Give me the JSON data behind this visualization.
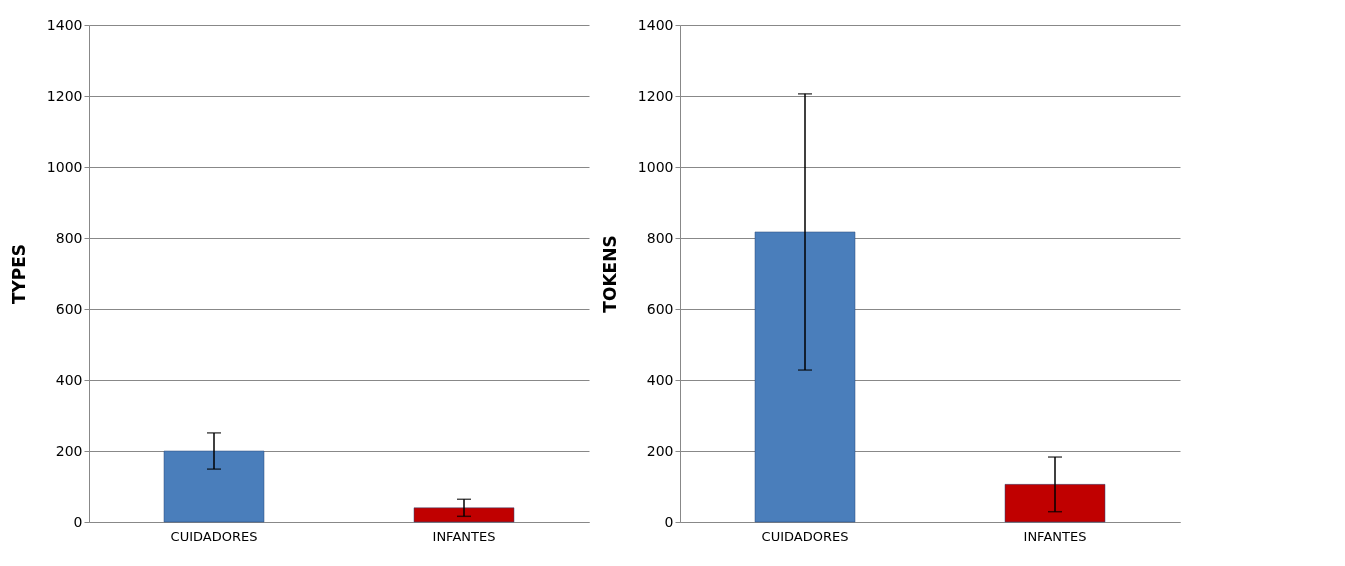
{
  "chart_data": [
    {
      "type": "bar",
      "ylabel": "TYPES",
      "categories": [
        "CUIDADORES",
        "INFANTES"
      ],
      "values": [
        200,
        40
      ],
      "colors": [
        "#4a7ebb",
        "#c00000"
      ],
      "errors": [
        51,
        24
      ],
      "ylim": [
        0,
        1400
      ],
      "yticks": [
        0,
        200,
        400,
        600,
        800,
        1000,
        1200,
        1400
      ],
      "grid": "y"
    },
    {
      "type": "bar",
      "ylabel": "TOKENS",
      "categories": [
        "CUIDADORES",
        "INFANTES"
      ],
      "values": [
        817,
        106
      ],
      "colors": [
        "#4a7ebb",
        "#c00000"
      ],
      "errors": [
        389,
        77
      ],
      "ylim": [
        0,
        1400
      ],
      "yticks": [
        0,
        200,
        400,
        600,
        800,
        1000,
        1200,
        1400
      ],
      "grid": "y"
    }
  ]
}
